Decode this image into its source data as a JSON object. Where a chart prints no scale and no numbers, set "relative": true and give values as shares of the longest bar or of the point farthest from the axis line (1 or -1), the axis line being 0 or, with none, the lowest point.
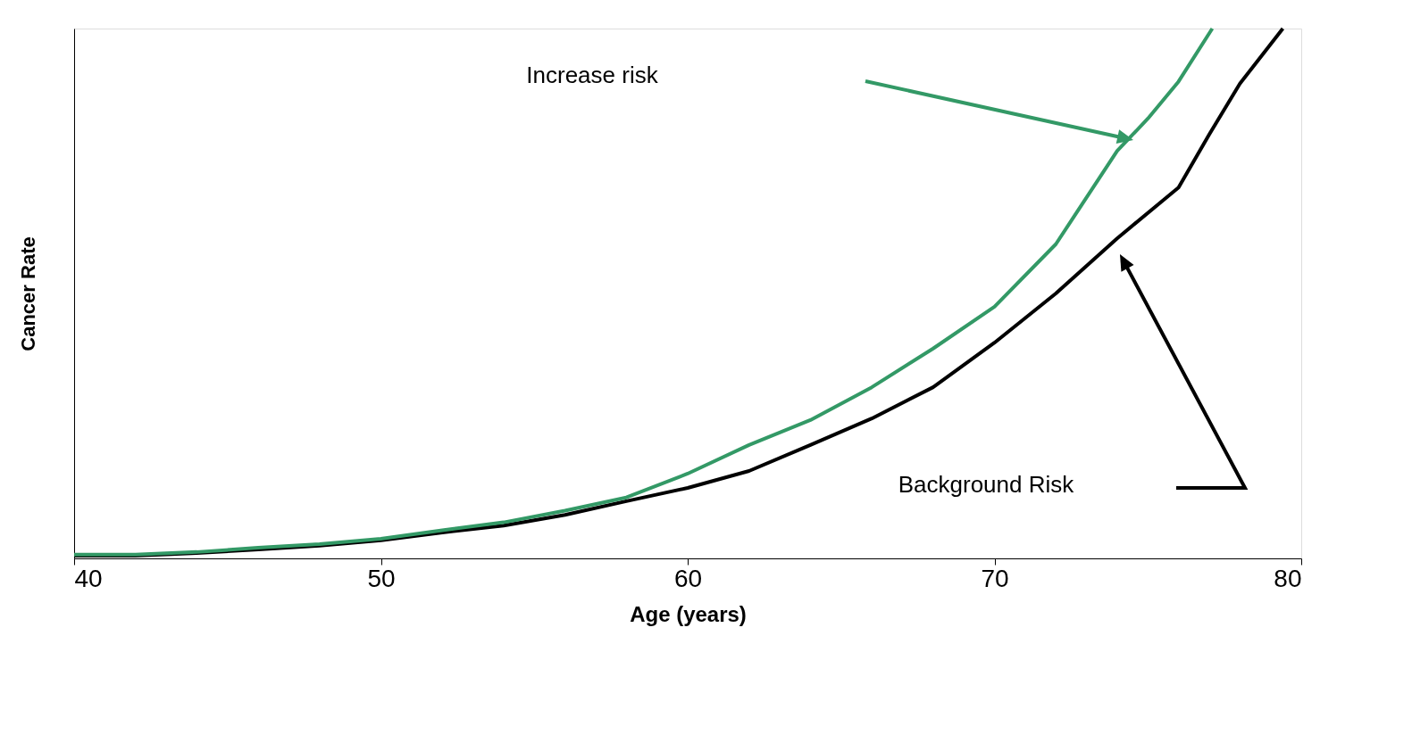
{
  "chart_data": {
    "type": "line",
    "relative": true,
    "xlabel": "Age (years)",
    "ylabel": "Cancer Rate",
    "xlim": [
      40,
      80
    ],
    "xticks": [
      40,
      50,
      60,
      70,
      80
    ],
    "grid": false,
    "marker": "none",
    "line_style": "solid",
    "series": [
      {
        "color": "#000000",
        "x": [
          40,
          42,
          44,
          46,
          48,
          50,
          52,
          54,
          56,
          58,
          60,
          62,
          64,
          66,
          68,
          70,
          72,
          74,
          76,
          77,
          78,
          79.4
        ],
        "values": [
          0.005,
          0.005,
          0.01,
          0.017,
          0.024,
          0.034,
          0.049,
          0.062,
          0.082,
          0.108,
          0.133,
          0.165,
          0.214,
          0.264,
          0.323,
          0.407,
          0.5,
          0.604,
          0.7,
          0.8,
          0.896,
          1.0
        ]
      },
      {
        "color": "#339966",
        "x": [
          40,
          42,
          44,
          46,
          48,
          50,
          52,
          54,
          56,
          58,
          60,
          62,
          64,
          66,
          68,
          70,
          72,
          74,
          75,
          76,
          77.1
        ],
        "values": [
          0.007,
          0.007,
          0.012,
          0.02,
          0.027,
          0.037,
          0.053,
          0.068,
          0.09,
          0.115,
          0.16,
          0.214,
          0.261,
          0.323,
          0.396,
          0.475,
          0.593,
          0.769,
          0.83,
          0.9,
          1.0
        ]
      }
    ],
    "annotations": [
      "Increase risk",
      "Background Risk"
    ]
  }
}
